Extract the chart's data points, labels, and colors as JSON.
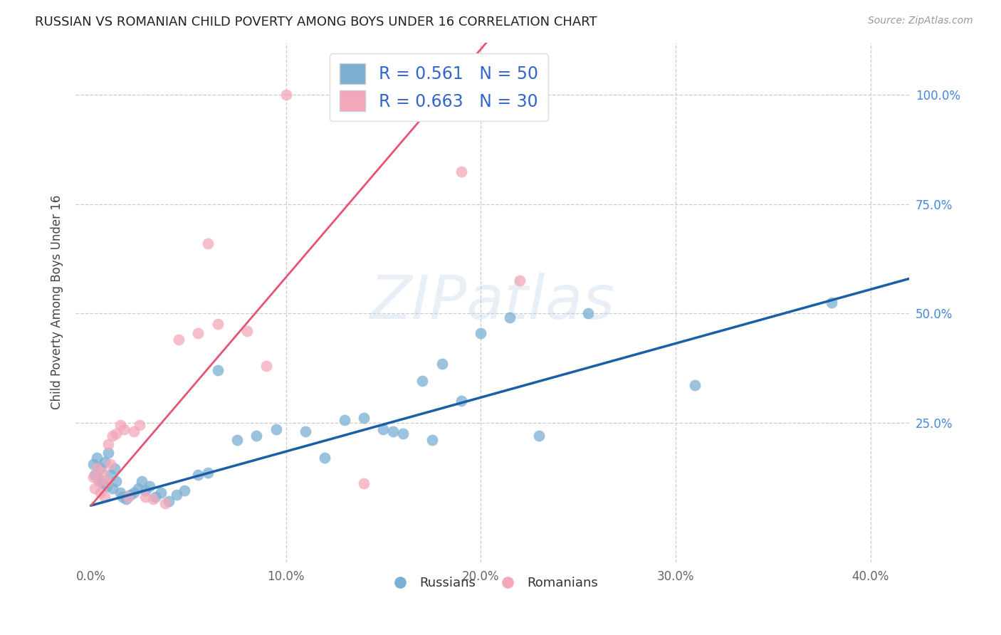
{
  "title": "RUSSIAN VS ROMANIAN CHILD POVERTY AMONG BOYS UNDER 16 CORRELATION CHART",
  "source": "Source: ZipAtlas.com",
  "ylabel": "Child Poverty Among Boys Under 16",
  "x_tick_labels": [
    "0.0%",
    "10.0%",
    "20.0%",
    "30.0%",
    "40.0%"
  ],
  "x_tick_values": [
    0.0,
    0.1,
    0.2,
    0.3,
    0.4
  ],
  "y_tick_labels": [
    "100.0%",
    "75.0%",
    "50.0%",
    "25.0%"
  ],
  "y_tick_values": [
    1.0,
    0.75,
    0.5,
    0.25
  ],
  "xlim": [
    -0.008,
    0.42
  ],
  "ylim": [
    -0.07,
    1.12
  ],
  "russian_R": 0.561,
  "russian_N": 50,
  "romanian_R": 0.663,
  "romanian_N": 30,
  "russian_color": "#7BAFD4",
  "romanian_color": "#F4A7B9",
  "russian_line_color": "#1A5FA8",
  "romanian_line_color": "#E85470",
  "background_color": "#FFFFFF",
  "grid_color": "#CCCCCC",
  "russians_x": [
    0.001,
    0.002,
    0.003,
    0.004,
    0.005,
    0.006,
    0.007,
    0.008,
    0.009,
    0.01,
    0.011,
    0.012,
    0.013,
    0.015,
    0.016,
    0.018,
    0.02,
    0.022,
    0.024,
    0.026,
    0.028,
    0.03,
    0.033,
    0.036,
    0.04,
    0.044,
    0.048,
    0.055,
    0.06,
    0.065,
    0.075,
    0.085,
    0.095,
    0.11,
    0.12,
    0.13,
    0.14,
    0.15,
    0.155,
    0.16,
    0.17,
    0.175,
    0.18,
    0.19,
    0.2,
    0.215,
    0.23,
    0.255,
    0.31,
    0.38
  ],
  "russians_y": [
    0.155,
    0.13,
    0.17,
    0.12,
    0.145,
    0.11,
    0.16,
    0.105,
    0.18,
    0.13,
    0.1,
    0.145,
    0.115,
    0.09,
    0.08,
    0.075,
    0.085,
    0.09,
    0.1,
    0.115,
    0.095,
    0.105,
    0.08,
    0.09,
    0.07,
    0.085,
    0.095,
    0.13,
    0.135,
    0.37,
    0.21,
    0.22,
    0.235,
    0.23,
    0.17,
    0.255,
    0.26,
    0.235,
    0.23,
    0.225,
    0.345,
    0.21,
    0.385,
    0.3,
    0.455,
    0.49,
    0.22,
    0.5,
    0.335,
    0.525
  ],
  "romanians_x": [
    0.001,
    0.002,
    0.003,
    0.004,
    0.005,
    0.006,
    0.007,
    0.008,
    0.009,
    0.01,
    0.011,
    0.013,
    0.015,
    0.017,
    0.019,
    0.022,
    0.025,
    0.028,
    0.032,
    0.038,
    0.045,
    0.055,
    0.06,
    0.065,
    0.08,
    0.09,
    0.1,
    0.14,
    0.19,
    0.22
  ],
  "romanians_y": [
    0.125,
    0.1,
    0.145,
    0.115,
    0.09,
    0.135,
    0.08,
    0.115,
    0.2,
    0.155,
    0.22,
    0.225,
    0.245,
    0.235,
    0.08,
    0.23,
    0.245,
    0.08,
    0.075,
    0.065,
    0.44,
    0.455,
    0.66,
    0.475,
    0.46,
    0.38,
    1.0,
    0.11,
    0.825,
    0.575
  ],
  "point_size": 130,
  "legend_fontsize": 17,
  "title_fontsize": 13,
  "tick_fontsize": 12,
  "ylabel_fontsize": 12,
  "watermark_text": "ZIPatlas",
  "watermark_color": "#B0C8E0",
  "watermark_alpha": 0.28
}
